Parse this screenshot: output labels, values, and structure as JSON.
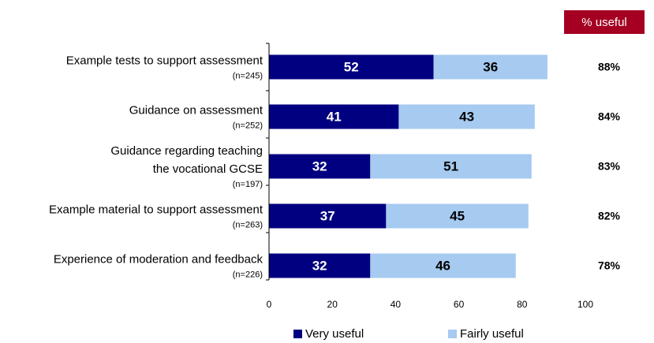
{
  "chart_data": {
    "type": "stacked-bar-horizontal",
    "categories": [
      "Example tests to support assessment",
      "Guidance on assessment",
      "Guidance regarding teaching\nthe vocational GCSE",
      "Example material to support assessment",
      "Experience of moderation and feedback"
    ],
    "sample_sizes": [
      "(n=245)",
      "(n=252)",
      "(n=197)",
      "(n=263)",
      "(n=226)"
    ],
    "series": [
      {
        "name": "Very useful",
        "color": "#000080",
        "label_color": "#ffffff",
        "values": [
          52,
          41,
          32,
          37,
          32
        ]
      },
      {
        "name": "Fairly useful",
        "color": "#a6caf0",
        "label_color": "#000000",
        "values": [
          36,
          43,
          51,
          45,
          46
        ]
      }
    ],
    "useful": {
      "title": "% useful",
      "color": "#a50021",
      "values": [
        88,
        84,
        83,
        82,
        78
      ],
      "value_labels": [
        "88%",
        "84%",
        "83%",
        "82%",
        "78%"
      ]
    },
    "xlim": [
      0,
      100
    ],
    "xticks": [
      0,
      20,
      40,
      60,
      80,
      100
    ],
    "legend": "bottom"
  }
}
